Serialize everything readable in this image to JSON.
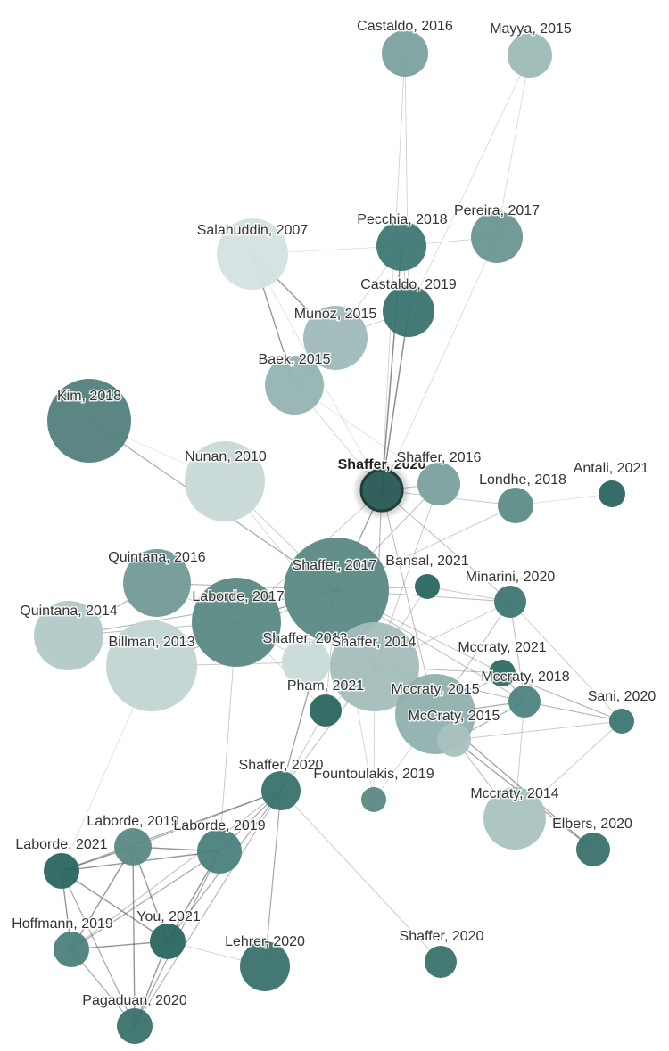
{
  "graph": {
    "colors": {
      "dark": "#2f6b66",
      "mid": "#4f8682",
      "light": "#9ebab8",
      "pale": "#c9dad9",
      "edge": "#555555"
    },
    "focus_node": "shaffer-2020-a",
    "nodes": [
      {
        "id": "castaldo-2016",
        "label": "Castaldo, 2016",
        "shade": "#7aa19e"
      },
      {
        "id": "mayya-2015",
        "label": "Mayya, 2015",
        "shade": "#9cbab7"
      },
      {
        "id": "pecchia-2018",
        "label": "Pecchia, 2018",
        "shade": "#3f7873"
      },
      {
        "id": "pereira-2017",
        "label": "Pereira, 2017",
        "shade": "#6a9591"
      },
      {
        "id": "salahuddin-2007",
        "label": "Salahuddin, 2007",
        "shade": "#d3e2e1"
      },
      {
        "id": "castaldo-2019",
        "label": "Castaldo, 2019",
        "shade": "#3a736e"
      },
      {
        "id": "munoz-2015",
        "label": "Munoz, 2015",
        "shade": "#9ebab8"
      },
      {
        "id": "baek-2015",
        "label": "Baek, 2015",
        "shade": "#94b3b1"
      },
      {
        "id": "kim-2018",
        "label": "Kim, 2018",
        "shade": "#527f7c"
      },
      {
        "id": "nunan-2010",
        "label": "Nunan, 2010",
        "shade": "#c8d9d8"
      },
      {
        "id": "shaffer-2020-a",
        "label": "Shaffer, 2020",
        "shade": "#2b5c57"
      },
      {
        "id": "shaffer-2016",
        "label": "Shaffer, 2016",
        "shade": "#79a09d"
      },
      {
        "id": "londhe-2018",
        "label": "Londhe, 2018",
        "shade": "#5e8c88"
      },
      {
        "id": "antali-2021",
        "label": "Antali, 2021",
        "shade": "#2a6560"
      },
      {
        "id": "quintana-2016",
        "label": "Quintana, 2016",
        "shade": "#719a97"
      },
      {
        "id": "shaffer-2017",
        "label": "Shaffer, 2017",
        "shade": "#5b8985"
      },
      {
        "id": "bansal-2021",
        "label": "Bansal, 2021",
        "shade": "#2a6560"
      },
      {
        "id": "minarini-2020",
        "label": "Minarini, 2020",
        "shade": "#3f7672"
      },
      {
        "id": "laborde-2017",
        "label": "Laborde, 2017",
        "shade": "#5b8985"
      },
      {
        "id": "quintana-2014",
        "label": "Quintana, 2014",
        "shade": "#b2c9c7"
      },
      {
        "id": "billman-2013",
        "label": "Billman, 2013",
        "shade": "#c1d5d3"
      },
      {
        "id": "shaffer-2013",
        "label": "Shaffer, 2013",
        "shade": "#c9dad9"
      },
      {
        "id": "shaffer-2014",
        "label": "Shaffer, 2014",
        "shade": "#a3bebc"
      },
      {
        "id": "mccraty-2021",
        "label": "Mccraty, 2021",
        "shade": "#2f6b66"
      },
      {
        "id": "mccraty-2018",
        "label": "Mccraty, 2018",
        "shade": "#4e837f"
      },
      {
        "id": "pham-2021",
        "label": "Pham, 2021",
        "shade": "#2a6560"
      },
      {
        "id": "mccraty-2015-a",
        "label": "Mccraty, 2015",
        "shade": "#8fb0ae"
      },
      {
        "id": "mccraty-2015-b",
        "label": "McCraty, 2015",
        "shade": "#a9c2c0"
      },
      {
        "id": "sani-2020",
        "label": "Sani, 2020",
        "shade": "#3f7672"
      },
      {
        "id": "shaffer-2020-b",
        "label": "Shaffer, 2020",
        "shade": "#3a716c"
      },
      {
        "id": "fountoulakis-2019",
        "label": "Fountoulakis, 2019",
        "shade": "#5b8985"
      },
      {
        "id": "mccraty-2014",
        "label": "Mccraty, 2014",
        "shade": "#a9c2c0"
      },
      {
        "id": "elbers-2020",
        "label": "Elbers, 2020",
        "shade": "#3a716c"
      },
      {
        "id": "laborde-2019-a",
        "label": "Laborde, 2019",
        "shade": "#5b8985"
      },
      {
        "id": "laborde-2019-b",
        "label": "Laborde, 2019",
        "shade": "#4b807c"
      },
      {
        "id": "laborde-2021",
        "label": "Laborde, 2021",
        "shade": "#2a6560"
      },
      {
        "id": "hoffmann-2019",
        "label": "Hoffmann, 2019",
        "shade": "#4b807c"
      },
      {
        "id": "you-2021",
        "label": "You, 2021",
        "shade": "#2a6560"
      },
      {
        "id": "lehrer-2020",
        "label": "Lehrer, 2020",
        "shade": "#3a716c"
      },
      {
        "id": "shaffer-2020-c",
        "label": "Shaffer, 2020",
        "shade": "#3a716c"
      },
      {
        "id": "pagaduan-2020",
        "label": "Pagaduan, 2020",
        "shade": "#3a716c"
      }
    ]
  }
}
